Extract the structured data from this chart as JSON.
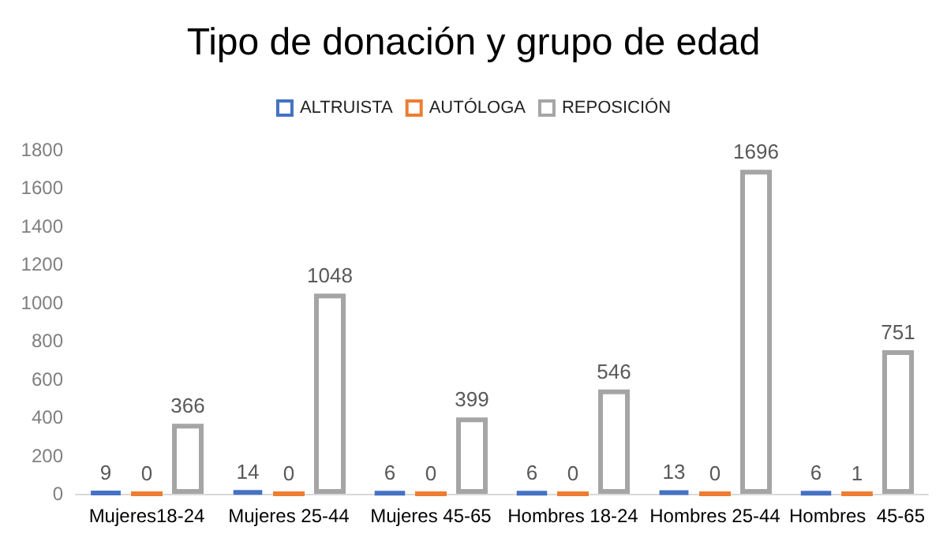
{
  "chart_data": {
    "type": "bar",
    "title": "Tipo de donación y grupo de edad",
    "categories": [
      "Mujeres18-24",
      "Mujeres 25-44",
      "Mujeres 45-65",
      "Hombres 18-24",
      "Hombres 25-44",
      "Hombres  45-65"
    ],
    "series": [
      {
        "name": "ALTRUISTA",
        "color": "#4472c4",
        "values": [
          9,
          14,
          6,
          6,
          13,
          6
        ]
      },
      {
        "name": "AUTÓLOGA",
        "color": "#ed7d31",
        "values": [
          0,
          0,
          0,
          0,
          0,
          1
        ]
      },
      {
        "name": "REPOSICIÓN",
        "color": "#a5a5a5",
        "values": [
          366,
          1048,
          399,
          546,
          1696,
          751
        ]
      }
    ],
    "ylim": [
      0,
      1800
    ],
    "yticks": [
      0,
      200,
      400,
      600,
      800,
      1000,
      1200,
      1400,
      1600,
      1800
    ],
    "grid": false,
    "legend": "top",
    "data_labels": true
  }
}
